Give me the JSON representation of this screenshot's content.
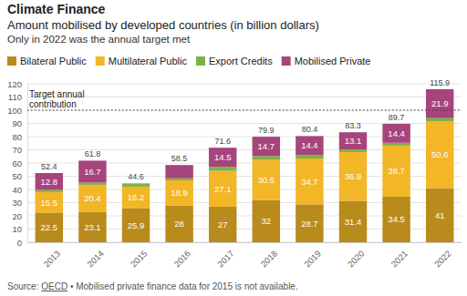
{
  "chart_data": {
    "type": "bar",
    "title": "Climate Finance",
    "subtitle": [
      "Amount mobilised by developed countries (in billion dollars)",
      "Only in 2022 was the annual target met"
    ],
    "categories": [
      "2013",
      "2014",
      "2015",
      "2016",
      "2017",
      "2018",
      "2019",
      "2020",
      "2021",
      "2022"
    ],
    "series": [
      {
        "name": "Bilateral Public",
        "color": "#b98b1c",
        "values": [
          22.5,
          23.1,
          25.9,
          28,
          27,
          32,
          28.7,
          31.4,
          34.5,
          41
        ]
      },
      {
        "name": "Multilateral Public",
        "color": "#f2b626",
        "values": [
          15.5,
          20.4,
          16.2,
          18.9,
          27.1,
          30.5,
          34.7,
          36.9,
          38.7,
          50.6
        ]
      },
      {
        "name": "Export Credits",
        "color": "#7cb342",
        "values": [
          1.6,
          1.6,
          2.5,
          1.5,
          3.0,
          2.7,
          2.6,
          1.9,
          2.1,
          2.4
        ],
        "value_labels": [
          null,
          null,
          null,
          null,
          null,
          null,
          null,
          null,
          null,
          null
        ]
      },
      {
        "name": "Mobilised Private",
        "color": "#a6457b",
        "values": [
          12.8,
          16.7,
          null,
          10.1,
          14.5,
          14.7,
          14.4,
          13.1,
          14.4,
          21.9
        ],
        "value_labels": [
          "12.8",
          "16.7",
          null,
          null,
          "14.5",
          "14.7",
          "14.4",
          "13.1",
          "14.4",
          "21.9"
        ]
      }
    ],
    "totals": [
      52.4,
      61.8,
      44.6,
      58.5,
      71.6,
      79.9,
      80.4,
      83.3,
      89.7,
      115.9
    ],
    "stacked": true,
    "data_labels": true,
    "ylim": [
      0,
      120
    ],
    "yticks": [
      0,
      10,
      20,
      30,
      40,
      50,
      60,
      70,
      80,
      90,
      100,
      110,
      120
    ],
    "grid": true,
    "legend": "top",
    "annotations": [
      {
        "text": "Target annual contribution",
        "y": 100
      }
    ],
    "source": {
      "label": "Source:",
      "link": "OECD",
      "note": "• Mobilised private finance data for 2015 is not available."
    }
  }
}
